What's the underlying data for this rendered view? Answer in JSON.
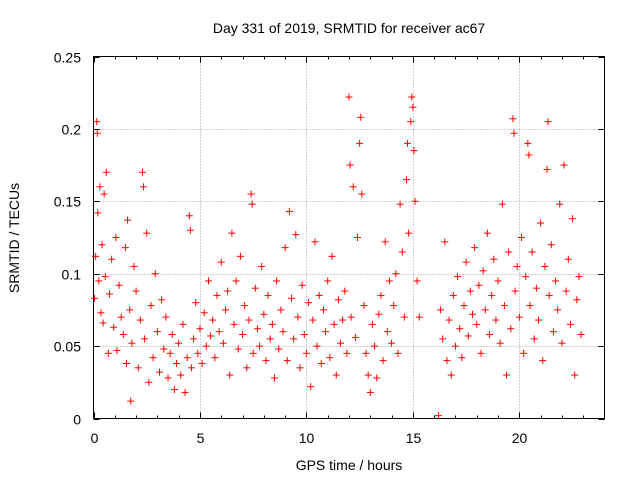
{
  "chart_data": {
    "type": "scatter",
    "title": "Day 331 of 2019, SRMTID for receiver ac67",
    "xlabel": "GPS time / hours",
    "ylabel": "SRMTID / TECUs",
    "xlim": [
      0,
      24
    ],
    "ylim": [
      0,
      0.25
    ],
    "xticks": [
      0,
      5,
      10,
      15,
      20
    ],
    "xtick_labels": [
      "0",
      "5",
      "10",
      "15",
      "20"
    ],
    "yticks": [
      0,
      0.05,
      0.1,
      0.15,
      0.2,
      0.25
    ],
    "ytick_labels": [
      "0",
      "0.05",
      "0.1",
      "0.15",
      "0.2",
      "0.25"
    ],
    "grid": true,
    "marker": "plus",
    "color": "#ff0000",
    "series": [
      {
        "name": "SRMTID",
        "points": [
          [
            0.05,
            0.083
          ],
          [
            0.1,
            0.112
          ],
          [
            0.15,
            0.205
          ],
          [
            0.18,
            0.197
          ],
          [
            0.2,
            0.142
          ],
          [
            0.25,
            0.095
          ],
          [
            0.3,
            0.16
          ],
          [
            0.35,
            0.073
          ],
          [
            0.4,
            0.12
          ],
          [
            0.45,
            0.066
          ],
          [
            0.5,
            0.155
          ],
          [
            0.55,
            0.098
          ],
          [
            0.6,
            0.17
          ],
          [
            0.7,
            0.045
          ],
          [
            0.75,
            0.086
          ],
          [
            0.85,
            0.11
          ],
          [
            0.95,
            0.063
          ],
          [
            1.05,
            0.125
          ],
          [
            1.1,
            0.047
          ],
          [
            1.2,
            0.092
          ],
          [
            1.3,
            0.07
          ],
          [
            1.4,
            0.058
          ],
          [
            1.5,
            0.118
          ],
          [
            1.55,
            0.038
          ],
          [
            1.6,
            0.137
          ],
          [
            1.7,
            0.075
          ],
          [
            1.75,
            0.012
          ],
          [
            1.8,
            0.052
          ],
          [
            1.9,
            0.105
          ],
          [
            2.0,
            0.088
          ],
          [
            2.1,
            0.035
          ],
          [
            2.2,
            0.068
          ],
          [
            2.3,
            0.17
          ],
          [
            2.35,
            0.16
          ],
          [
            2.4,
            0.055
          ],
          [
            2.5,
            0.128
          ],
          [
            2.6,
            0.025
          ],
          [
            2.7,
            0.078
          ],
          [
            2.8,
            0.042
          ],
          [
            2.9,
            0.1
          ],
          [
            3.0,
            0.06
          ],
          [
            3.1,
            0.032
          ],
          [
            3.2,
            0.082
          ],
          [
            3.3,
            0.048
          ],
          [
            3.4,
            0.07
          ],
          [
            3.5,
            0.028
          ],
          [
            3.6,
            0.045
          ],
          [
            3.7,
            0.058
          ],
          [
            3.8,
            0.02
          ],
          [
            3.9,
            0.038
          ],
          [
            4.0,
            0.052
          ],
          [
            4.1,
            0.03
          ],
          [
            4.2,
            0.065
          ],
          [
            4.3,
            0.018
          ],
          [
            4.4,
            0.042
          ],
          [
            4.5,
            0.14
          ],
          [
            4.55,
            0.13
          ],
          [
            4.6,
            0.035
          ],
          [
            4.7,
            0.055
          ],
          [
            4.8,
            0.08
          ],
          [
            4.9,
            0.045
          ],
          [
            5.0,
            0.062
          ],
          [
            5.1,
            0.038
          ],
          [
            5.2,
            0.073
          ],
          [
            5.3,
            0.05
          ],
          [
            5.4,
            0.095
          ],
          [
            5.5,
            0.057
          ],
          [
            5.6,
            0.068
          ],
          [
            5.7,
            0.042
          ],
          [
            5.8,
            0.085
          ],
          [
            5.9,
            0.06
          ],
          [
            6.0,
            0.108
          ],
          [
            6.1,
            0.052
          ],
          [
            6.2,
            0.075
          ],
          [
            6.3,
            0.088
          ],
          [
            6.4,
            0.03
          ],
          [
            6.5,
            0.128
          ],
          [
            6.6,
            0.065
          ],
          [
            6.7,
            0.095
          ],
          [
            6.8,
            0.048
          ],
          [
            6.9,
            0.112
          ],
          [
            7.0,
            0.058
          ],
          [
            7.1,
            0.078
          ],
          [
            7.2,
            0.035
          ],
          [
            7.3,
            0.068
          ],
          [
            7.4,
            0.155
          ],
          [
            7.45,
            0.148
          ],
          [
            7.5,
            0.045
          ],
          [
            7.6,
            0.09
          ],
          [
            7.7,
            0.062
          ],
          [
            7.8,
            0.05
          ],
          [
            7.9,
            0.105
          ],
          [
            8.0,
            0.072
          ],
          [
            8.1,
            0.04
          ],
          [
            8.2,
            0.085
          ],
          [
            8.3,
            0.055
          ],
          [
            8.4,
            0.065
          ],
          [
            8.5,
            0.028
          ],
          [
            8.6,
            0.095
          ],
          [
            8.7,
            0.048
          ],
          [
            8.8,
            0.075
          ],
          [
            8.9,
            0.06
          ],
          [
            9.0,
            0.118
          ],
          [
            9.1,
            0.04
          ],
          [
            9.2,
            0.143
          ],
          [
            9.3,
            0.083
          ],
          [
            9.4,
            0.055
          ],
          [
            9.5,
            0.127
          ],
          [
            9.6,
            0.07
          ],
          [
            9.7,
            0.035
          ],
          [
            9.8,
            0.092
          ],
          [
            9.9,
            0.058
          ],
          [
            10.0,
            0.045
          ],
          [
            10.1,
            0.08
          ],
          [
            10.2,
            0.022
          ],
          [
            10.3,
            0.068
          ],
          [
            10.4,
            0.122
          ],
          [
            10.5,
            0.05
          ],
          [
            10.6,
            0.085
          ],
          [
            10.7,
            0.038
          ],
          [
            10.8,
            0.075
          ],
          [
            10.9,
            0.06
          ],
          [
            11.0,
            0.095
          ],
          [
            11.1,
            0.042
          ],
          [
            11.2,
            0.112
          ],
          [
            11.3,
            0.065
          ],
          [
            11.4,
            0.03
          ],
          [
            11.5,
            0.082
          ],
          [
            11.6,
            0.052
          ],
          [
            11.7,
            0.068
          ],
          [
            11.8,
            0.088
          ],
          [
            11.9,
            0.045
          ],
          [
            12.0,
            0.222
          ],
          [
            12.05,
            0.175
          ],
          [
            12.1,
            0.07
          ],
          [
            12.2,
            0.16
          ],
          [
            12.3,
            0.056
          ],
          [
            12.4,
            0.125
          ],
          [
            12.5,
            0.19
          ],
          [
            12.55,
            0.208
          ],
          [
            12.6,
            0.155
          ],
          [
            12.7,
            0.078
          ],
          [
            12.8,
            0.045
          ],
          [
            12.9,
            0.03
          ],
          [
            13.0,
            0.018
          ],
          [
            13.1,
            0.065
          ],
          [
            13.2,
            0.05
          ],
          [
            13.3,
            0.028
          ],
          [
            13.4,
            0.072
          ],
          [
            13.5,
            0.085
          ],
          [
            13.6,
            0.04
          ],
          [
            13.7,
            0.122
          ],
          [
            13.8,
            0.06
          ],
          [
            13.9,
            0.095
          ],
          [
            14.0,
            0.052
          ],
          [
            14.1,
            0.078
          ],
          [
            14.2,
            0.1
          ],
          [
            14.3,
            0.045
          ],
          [
            14.4,
            0.148
          ],
          [
            14.5,
            0.115
          ],
          [
            14.6,
            0.07
          ],
          [
            14.7,
            0.165
          ],
          [
            14.75,
            0.19
          ],
          [
            14.8,
            0.128
          ],
          [
            14.9,
            0.205
          ],
          [
            14.95,
            0.222
          ],
          [
            15.0,
            0.215
          ],
          [
            15.05,
            0.185
          ],
          [
            15.1,
            0.15
          ],
          [
            15.2,
            0.095
          ],
          [
            15.3,
            0.07
          ],
          [
            16.2,
            0.002
          ],
          [
            16.3,
            0.075
          ],
          [
            16.4,
            0.055
          ],
          [
            16.5,
            0.122
          ],
          [
            16.6,
            0.04
          ],
          [
            16.7,
            0.068
          ],
          [
            16.8,
            0.03
          ],
          [
            16.9,
            0.085
          ],
          [
            17.0,
            0.05
          ],
          [
            17.1,
            0.098
          ],
          [
            17.2,
            0.062
          ],
          [
            17.3,
            0.042
          ],
          [
            17.4,
            0.078
          ],
          [
            17.5,
            0.108
          ],
          [
            17.6,
            0.057
          ],
          [
            17.7,
            0.088
          ],
          [
            17.8,
            0.072
          ],
          [
            17.9,
            0.118
          ],
          [
            18.0,
            0.065
          ],
          [
            18.1,
            0.092
          ],
          [
            18.2,
            0.045
          ],
          [
            18.3,
            0.102
          ],
          [
            18.4,
            0.075
          ],
          [
            18.5,
            0.128
          ],
          [
            18.6,
            0.058
          ],
          [
            18.7,
            0.085
          ],
          [
            18.8,
            0.11
          ],
          [
            18.9,
            0.068
          ],
          [
            19.0,
            0.095
          ],
          [
            19.1,
            0.052
          ],
          [
            19.2,
            0.148
          ],
          [
            19.3,
            0.078
          ],
          [
            19.4,
            0.03
          ],
          [
            19.5,
            0.115
          ],
          [
            19.6,
            0.062
          ],
          [
            19.7,
            0.207
          ],
          [
            19.75,
            0.197
          ],
          [
            19.8,
            0.088
          ],
          [
            19.9,
            0.105
          ],
          [
            20.0,
            0.07
          ],
          [
            20.1,
            0.125
          ],
          [
            20.2,
            0.045
          ],
          [
            20.3,
            0.098
          ],
          [
            20.4,
            0.19
          ],
          [
            20.45,
            0.182
          ],
          [
            20.5,
            0.078
          ],
          [
            20.6,
            0.115
          ],
          [
            20.7,
            0.055
          ],
          [
            20.8,
            0.09
          ],
          [
            20.9,
            0.068
          ],
          [
            21.0,
            0.135
          ],
          [
            21.1,
            0.04
          ],
          [
            21.2,
            0.105
          ],
          [
            21.3,
            0.172
          ],
          [
            21.35,
            0.205
          ],
          [
            21.4,
            0.085
          ],
          [
            21.5,
            0.12
          ],
          [
            21.6,
            0.06
          ],
          [
            21.7,
            0.095
          ],
          [
            21.8,
            0.075
          ],
          [
            21.9,
            0.148
          ],
          [
            22.0,
            0.052
          ],
          [
            22.1,
            0.175
          ],
          [
            22.2,
            0.088
          ],
          [
            22.3,
            0.11
          ],
          [
            22.4,
            0.065
          ],
          [
            22.5,
            0.138
          ],
          [
            22.6,
            0.03
          ],
          [
            22.7,
            0.082
          ],
          [
            22.8,
            0.098
          ],
          [
            22.9,
            0.058
          ]
        ]
      }
    ]
  }
}
